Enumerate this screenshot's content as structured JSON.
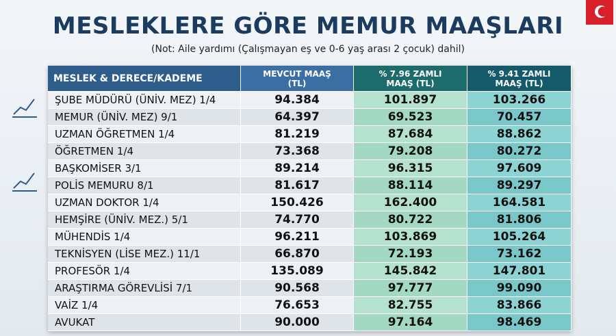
{
  "header": {
    "title": "MESLEKLERE GÖRE MEMUR MAAŞLARI",
    "note": "(Not: Aile yardımı (Çalışmayan eş ve 0-6 yaş arası 2 çocuk) dahil)"
  },
  "table": {
    "columns": [
      "MESLEK & DERECE/KADEME",
      "MEVCUT MAAŞ (TL)",
      "% 7.96 ZAMLI MAAŞ (TL)",
      "% 9.41 ZAMLI MAAŞ (TL)"
    ],
    "rows": [
      [
        "ŞUBE MÜDÜRÜ (ÜNİV. MEZ) 1/4",
        "94.384",
        "101.897",
        "103.266"
      ],
      [
        "MEMUR (ÜNİV. MEZ) 9/1",
        "64.397",
        "69.523",
        "70.457"
      ],
      [
        "UZMAN ÖĞRETMEN 1/4",
        "81.219",
        "87.684",
        "88.862"
      ],
      [
        "ÖĞRETMEN 1/4",
        "73.368",
        "79.208",
        "80.272"
      ],
      [
        "BAŞKOMİSER 3/1",
        "89.214",
        "96.315",
        "97.609"
      ],
      [
        "POLİS MEMURU 8/1",
        "81.617",
        "88.114",
        "89.297"
      ],
      [
        "UZMAN DOKTOR 1/4",
        "150.426",
        "162.400",
        "164.581"
      ],
      [
        "HEMŞİRE (ÜNİV. MEZ.) 5/1",
        "74.770",
        "80.722",
        "81.806"
      ],
      [
        "MÜHENDİS 1/4",
        "96.211",
        "103.869",
        "105.264"
      ],
      [
        "TEKNİSYEN (LİSE MEZ.) 11/1",
        "66.870",
        "72.193",
        "73.162"
      ],
      [
        "PROFESÖR 1/4",
        "135.089",
        "145.842",
        "147.801"
      ],
      [
        "ARAŞTIRMA GÖREVLİSİ 7/1",
        "90.568",
        "97.777",
        "99.090"
      ],
      [
        "VAİZ 1/4",
        "76.653",
        "82.755",
        "83.866"
      ],
      [
        "AVUKAT",
        "90.000",
        "97.164",
        "98.469"
      ]
    ]
  }
}
